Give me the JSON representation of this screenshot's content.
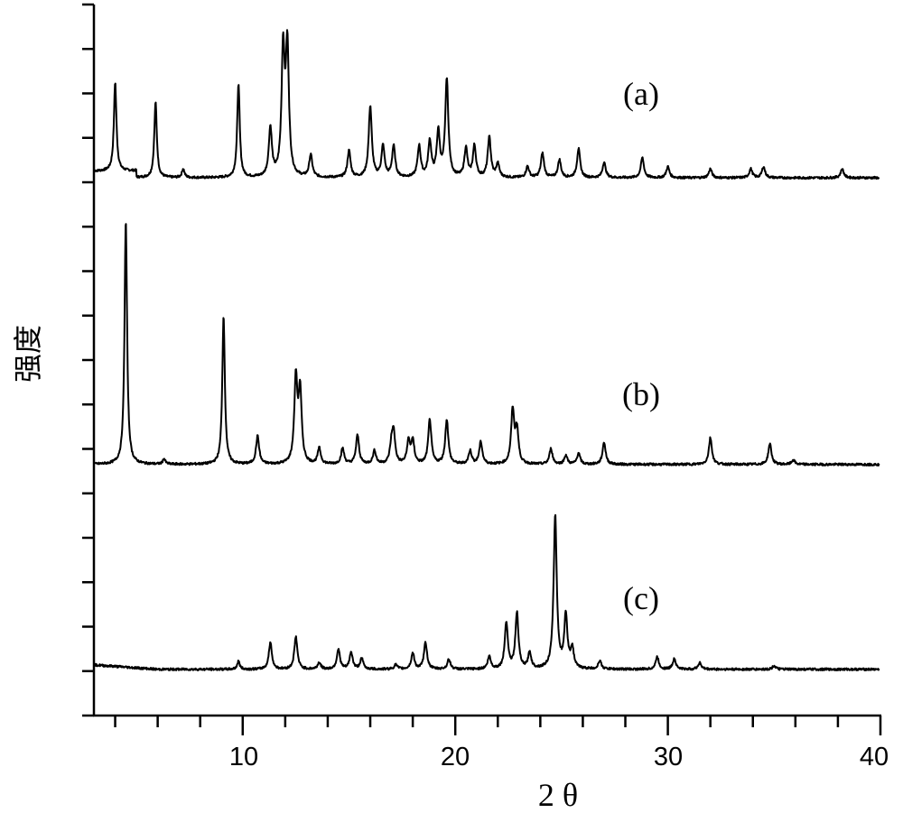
{
  "chart_data": {
    "type": "line",
    "title": "",
    "xlabel": "2 θ",
    "ylabel": "强度",
    "xlim": [
      3,
      40
    ],
    "ylim": [
      0,
      16
    ],
    "x_ticks": [
      10,
      20,
      30,
      40
    ],
    "x_tick_labels": [
      "10",
      "20",
      "30",
      "40"
    ],
    "grid": false,
    "y_tick_labels_shown": false,
    "series": [
      {
        "name": "(a)",
        "baseline": 12.1,
        "peaks": [
          [
            4.0,
            2.0
          ],
          [
            5.9,
            1.7
          ],
          [
            7.2,
            0.2
          ],
          [
            9.8,
            2.1
          ],
          [
            11.3,
            1.1
          ],
          [
            11.9,
            2.8
          ],
          [
            12.1,
            2.85
          ],
          [
            13.2,
            0.5
          ],
          [
            15.0,
            0.6
          ],
          [
            16.0,
            1.6
          ],
          [
            16.6,
            0.7
          ],
          [
            17.1,
            0.7
          ],
          [
            18.3,
            0.7
          ],
          [
            18.8,
            0.8
          ],
          [
            19.2,
            1.0
          ],
          [
            19.6,
            2.2
          ],
          [
            20.5,
            0.65
          ],
          [
            20.9,
            0.7
          ],
          [
            21.6,
            0.9
          ],
          [
            22.0,
            0.3
          ],
          [
            23.4,
            0.25
          ],
          [
            24.1,
            0.55
          ],
          [
            24.9,
            0.4
          ],
          [
            25.8,
            0.65
          ],
          [
            27.0,
            0.35
          ],
          [
            28.8,
            0.45
          ],
          [
            30.0,
            0.25
          ],
          [
            32.0,
            0.2
          ],
          [
            33.9,
            0.2
          ],
          [
            34.5,
            0.25
          ],
          [
            38.2,
            0.2
          ]
        ]
      },
      {
        "name": "(b)",
        "baseline": 5.65,
        "peaks": [
          [
            4.5,
            5.5
          ],
          [
            6.3,
            0.12
          ],
          [
            9.1,
            3.35
          ],
          [
            10.7,
            0.63
          ],
          [
            12.5,
            1.9
          ],
          [
            12.7,
            1.6
          ],
          [
            13.6,
            0.35
          ],
          [
            14.7,
            0.35
          ],
          [
            15.4,
            0.65
          ],
          [
            16.2,
            0.3
          ],
          [
            17.0,
            0.4
          ],
          [
            17.1,
            0.65
          ],
          [
            17.8,
            0.5
          ],
          [
            18.0,
            0.5
          ],
          [
            18.8,
            1.0
          ],
          [
            19.6,
            1.0
          ],
          [
            20.7,
            0.3
          ],
          [
            21.2,
            0.5
          ],
          [
            22.7,
            1.2
          ],
          [
            22.9,
            0.75
          ],
          [
            24.5,
            0.35
          ],
          [
            25.2,
            0.2
          ],
          [
            25.8,
            0.25
          ],
          [
            27.0,
            0.5
          ],
          [
            32.0,
            0.6
          ],
          [
            34.8,
            0.47
          ],
          [
            35.9,
            0.1
          ]
        ]
      },
      {
        "name": "(c)",
        "baseline": 1.04,
        "peaks": [
          [
            9.8,
            0.18
          ],
          [
            11.3,
            0.6
          ],
          [
            12.5,
            0.73
          ],
          [
            13.6,
            0.15
          ],
          [
            14.5,
            0.45
          ],
          [
            15.1,
            0.38
          ],
          [
            15.6,
            0.24
          ],
          [
            17.2,
            0.1
          ],
          [
            18.0,
            0.36
          ],
          [
            18.6,
            0.6
          ],
          [
            19.7,
            0.22
          ],
          [
            21.6,
            0.28
          ],
          [
            22.4,
            1.05
          ],
          [
            22.9,
            1.25
          ],
          [
            23.5,
            0.36
          ],
          [
            24.7,
            3.45
          ],
          [
            25.2,
            1.2
          ],
          [
            25.5,
            0.45
          ],
          [
            26.8,
            0.18
          ],
          [
            29.5,
            0.28
          ],
          [
            30.3,
            0.24
          ],
          [
            31.5,
            0.15
          ],
          [
            35.0,
            0.08
          ]
        ]
      }
    ]
  }
}
